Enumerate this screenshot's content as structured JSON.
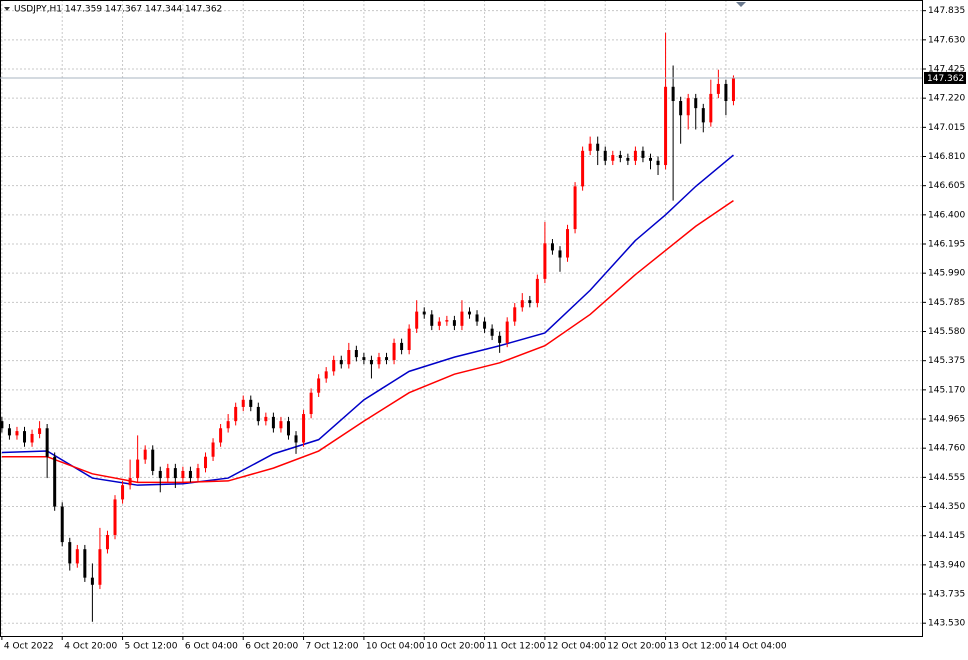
{
  "chart_data": {
    "type": "candlestick",
    "title": "USDJPY,H1  147.359 147.367 147.344 147.362",
    "bull_color": "#ff0000",
    "bear_color": "#000000",
    "grid": true,
    "xlim": [
      -0.5,
      244
    ],
    "ylim": [
      143.44,
      147.91
    ],
    "xticks": [
      {
        "value": 0,
        "label": "4 Oct 2022"
      },
      {
        "value": 16,
        "label": "4 Oct 20:00"
      },
      {
        "value": 32,
        "label": "5 Oct 12:00"
      },
      {
        "value": 48,
        "label": "6 Oct 04:00"
      },
      {
        "value": 64,
        "label": "6 Oct 20:00"
      },
      {
        "value": 80,
        "label": "7 Oct 12:00"
      },
      {
        "value": 96,
        "label": "10 Oct 04:00"
      },
      {
        "value": 112,
        "label": "10 Oct 20:00"
      },
      {
        "value": 128,
        "label": "11 Oct 12:00"
      },
      {
        "value": 144,
        "label": "12 Oct 04:00"
      },
      {
        "value": 160,
        "label": "12 Oct 20:00"
      },
      {
        "value": 176,
        "label": "13 Oct 12:00"
      },
      {
        "value": 192,
        "label": "14 Oct 04:00"
      }
    ],
    "yticks": [
      {
        "value": 143.53,
        "label": "143.530"
      },
      143.735,
      {
        "value": 143.94,
        "label": "143.940"
      },
      144.145,
      {
        "value": 144.35,
        "label": "144.350"
      },
      144.555,
      {
        "value": 144.76,
        "label": "144.760"
      },
      144.965,
      {
        "value": 145.17,
        "label": "145.170"
      },
      145.375,
      {
        "value": 145.58,
        "label": "145.580"
      },
      145.785,
      {
        "value": 145.99,
        "label": "145.990"
      },
      146.195,
      {
        "value": 146.4,
        "label": "146.400"
      },
      146.605,
      {
        "value": 146.81,
        "label": "146.810"
      },
      147.015,
      {
        "value": 147.22,
        "label": "147.220"
      },
      147.425,
      {
        "value": 147.63,
        "label": "147.630"
      },
      147.835
    ],
    "current_price": 147.362,
    "x": [
      0,
      2,
      4,
      6,
      8,
      10,
      12,
      14,
      16,
      18,
      20,
      22,
      24,
      26,
      28,
      30,
      32,
      34,
      36,
      38,
      40,
      42,
      44,
      46,
      48,
      50,
      52,
      54,
      56,
      58,
      60,
      62,
      64,
      66,
      68,
      70,
      72,
      74,
      76,
      78,
      80,
      82,
      84,
      86,
      88,
      90,
      92,
      94,
      96,
      98,
      100,
      102,
      104,
      106,
      108,
      110,
      112,
      114,
      116,
      118,
      120,
      122,
      124,
      126,
      128,
      130,
      132,
      134,
      136,
      138,
      140,
      142,
      144,
      146,
      148,
      150,
      152,
      154,
      156,
      158,
      160,
      162,
      164,
      166,
      168,
      170,
      172,
      174,
      176,
      178,
      180,
      182,
      184,
      186,
      188,
      190,
      192,
      194
    ],
    "open": [
      144.95,
      144.9,
      144.85,
      144.88,
      144.8,
      144.86,
      144.9,
      144.7,
      144.35,
      144.1,
      143.95,
      144.05,
      143.85,
      143.8,
      144.05,
      144.15,
      144.4,
      144.5,
      144.55,
      144.68,
      144.75,
      144.6,
      144.55,
      144.62,
      144.55,
      144.6,
      144.55,
      144.62,
      144.7,
      144.8,
      144.9,
      144.95,
      145.05,
      145.1,
      145.05,
      144.95,
      144.98,
      144.9,
      144.95,
      144.85,
      144.8,
      145.0,
      145.15,
      145.25,
      145.3,
      145.38,
      145.35,
      145.45,
      145.4,
      145.38,
      145.35,
      145.4,
      145.38,
      145.5,
      145.45,
      145.6,
      145.72,
      145.7,
      145.62,
      145.65,
      145.66,
      145.62,
      145.72,
      145.7,
      145.65,
      145.6,
      145.55,
      145.5,
      145.65,
      145.75,
      145.8,
      145.78,
      145.95,
      146.2,
      146.15,
      146.1,
      146.3,
      146.6,
      146.85,
      146.9,
      146.85,
      146.78,
      146.82,
      146.8,
      146.78,
      146.85,
      146.8,
      146.78,
      146.75,
      147.3,
      147.2,
      147.1,
      147.22,
      147.15,
      147.05,
      147.25,
      147.32,
      147.2
    ],
    "high": [
      144.98,
      144.93,
      144.91,
      144.91,
      144.89,
      144.95,
      144.93,
      144.73,
      144.38,
      144.13,
      144.08,
      144.08,
      143.95,
      144.2,
      144.18,
      144.43,
      144.53,
      144.68,
      144.85,
      144.78,
      144.78,
      144.63,
      144.65,
      144.65,
      144.63,
      144.63,
      144.65,
      144.73,
      144.83,
      144.93,
      145.0,
      145.08,
      145.13,
      145.13,
      145.08,
      145.01,
      145.01,
      144.98,
      144.98,
      144.88,
      145.03,
      145.18,
      145.28,
      145.33,
      145.41,
      145.41,
      145.5,
      145.48,
      145.43,
      145.41,
      145.43,
      145.43,
      145.53,
      145.53,
      145.63,
      145.8,
      145.75,
      145.73,
      145.68,
      145.69,
      145.69,
      145.8,
      145.75,
      145.73,
      145.68,
      145.63,
      145.58,
      145.68,
      145.78,
      145.85,
      145.83,
      145.98,
      146.35,
      146.23,
      146.18,
      146.33,
      146.63,
      146.88,
      146.95,
      146.95,
      146.88,
      146.85,
      146.85,
      146.83,
      146.88,
      146.88,
      146.83,
      146.81,
      147.68,
      147.45,
      147.23,
      147.25,
      147.25,
      147.18,
      147.35,
      147.42,
      147.35,
      147.38
    ],
    "low": [
      144.87,
      144.82,
      144.82,
      144.77,
      144.77,
      144.83,
      144.55,
      144.32,
      144.07,
      143.9,
      143.92,
      143.82,
      143.54,
      143.77,
      144.02,
      144.12,
      144.37,
      144.47,
      144.52,
      144.65,
      144.57,
      144.45,
      144.52,
      144.48,
      144.52,
      144.52,
      144.52,
      144.59,
      144.67,
      144.77,
      144.87,
      144.92,
      145.02,
      145.02,
      144.92,
      144.92,
      144.87,
      144.87,
      144.82,
      144.72,
      144.77,
      144.97,
      145.12,
      145.22,
      145.27,
      145.32,
      145.32,
      145.37,
      145.35,
      145.25,
      145.32,
      145.35,
      145.35,
      145.42,
      145.42,
      145.57,
      145.67,
      145.59,
      145.59,
      145.62,
      145.59,
      145.59,
      145.67,
      145.62,
      145.57,
      145.52,
      145.43,
      145.47,
      145.62,
      145.72,
      145.75,
      145.75,
      145.92,
      146.12,
      146.0,
      146.07,
      146.27,
      146.57,
      146.82,
      146.75,
      146.75,
      146.75,
      146.77,
      146.75,
      146.75,
      146.77,
      146.72,
      146.68,
      146.72,
      146.5,
      146.9,
      147.0,
      147.0,
      146.98,
      147.02,
      147.22,
      147.1,
      147.17
    ],
    "close": [
      144.9,
      144.85,
      144.88,
      144.8,
      144.86,
      144.9,
      144.7,
      144.35,
      144.1,
      143.95,
      144.05,
      143.85,
      143.8,
      144.05,
      144.15,
      144.4,
      144.5,
      144.55,
      144.68,
      144.75,
      144.6,
      144.55,
      144.62,
      144.55,
      144.6,
      144.55,
      144.62,
      144.7,
      144.8,
      144.9,
      144.95,
      145.05,
      145.1,
      145.05,
      144.95,
      144.98,
      144.9,
      144.95,
      144.85,
      144.8,
      145.0,
      145.15,
      145.25,
      145.3,
      145.38,
      145.35,
      145.45,
      145.4,
      145.38,
      145.35,
      145.4,
      145.38,
      145.5,
      145.45,
      145.6,
      145.72,
      145.7,
      145.62,
      145.65,
      145.66,
      145.62,
      145.72,
      145.7,
      145.65,
      145.6,
      145.55,
      145.5,
      145.65,
      145.75,
      145.8,
      145.78,
      145.95,
      146.2,
      146.15,
      146.1,
      146.3,
      146.6,
      146.85,
      146.9,
      146.85,
      146.78,
      146.82,
      146.8,
      146.78,
      146.85,
      146.8,
      146.78,
      146.75,
      147.3,
      147.2,
      147.1,
      147.22,
      147.15,
      147.05,
      147.25,
      147.32,
      147.2,
      147.362
    ],
    "moving_averages": [
      {
        "color": "#0000c8",
        "x": [
          0,
          12,
          24,
          36,
          48,
          60,
          72,
          84,
          96,
          108,
          120,
          132,
          144,
          156,
          168,
          176,
          184,
          194
        ],
        "values": [
          144.73,
          144.74,
          144.55,
          144.5,
          144.51,
          144.55,
          144.72,
          144.82,
          145.1,
          145.3,
          145.4,
          145.48,
          145.57,
          145.87,
          146.22,
          146.4,
          146.6,
          146.82
        ]
      },
      {
        "color": "#ff0000",
        "x": [
          0,
          12,
          24,
          36,
          48,
          60,
          72,
          84,
          96,
          108,
          120,
          132,
          144,
          156,
          168,
          176,
          184,
          194
        ],
        "values": [
          144.7,
          144.7,
          144.58,
          144.52,
          144.52,
          144.53,
          144.62,
          144.74,
          144.95,
          145.15,
          145.28,
          145.36,
          145.48,
          145.7,
          145.98,
          146.15,
          146.32,
          146.5
        ]
      }
    ]
  }
}
